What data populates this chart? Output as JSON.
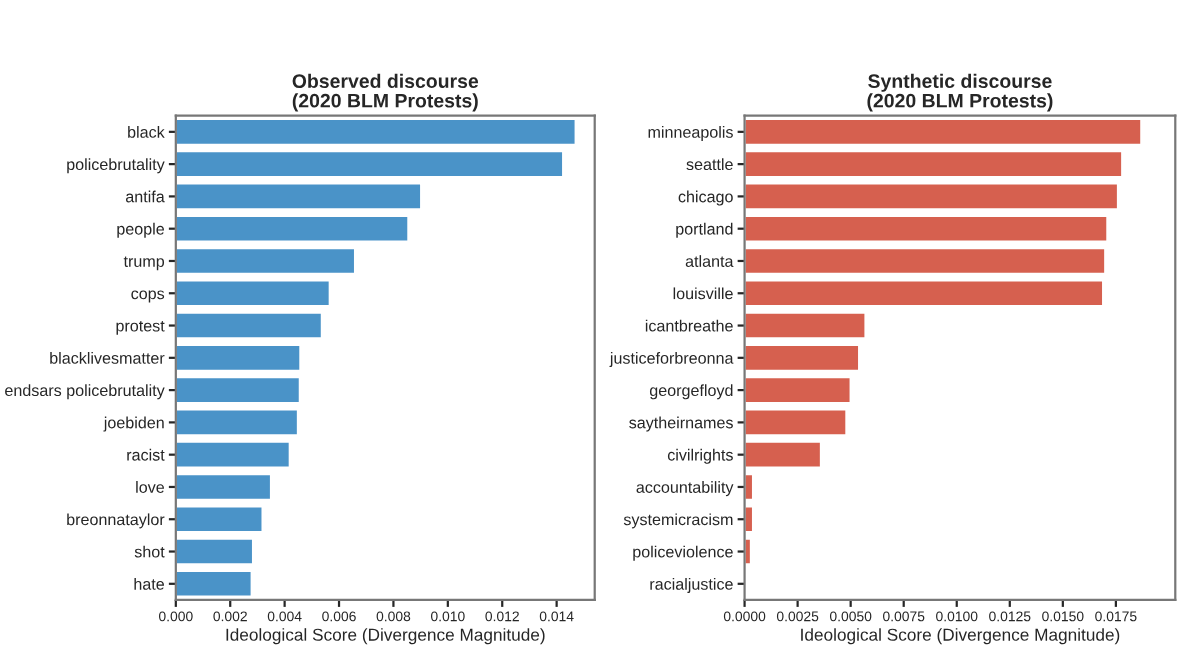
{
  "chart_data": [
    {
      "type": "bar",
      "orientation": "horizontal",
      "title": "Observed discourse\n(2020 BLM Protests)",
      "xlabel": "Ideological Score (Divergence Magnitude)",
      "categories": [
        "black",
        "policebrutality",
        "antifa",
        "people",
        "trump",
        "cops",
        "protest",
        "blacklivesmatter",
        "endsars policebrutality",
        "joebiden",
        "racist",
        "love",
        "breonnataylor",
        "shot",
        "hate"
      ],
      "series": [
        {
          "color": "#4a93c8",
          "values": [
            0.0147,
            0.01424,
            0.00902,
            0.00855,
            0.00659,
            0.00566,
            0.00537,
            0.00458,
            0.00456,
            0.00449,
            0.00419,
            0.0035,
            0.00319,
            0.00284,
            0.00279
          ]
        }
      ],
      "xlim": [
        0,
        0.0154
      ],
      "xticks": [
        {
          "value": 0,
          "label": "0.000"
        },
        {
          "value": 0.002,
          "label": "0.002"
        },
        {
          "value": 0.004,
          "label": "0.004"
        },
        {
          "value": 0.006,
          "label": "0.006"
        },
        {
          "value": 0.008,
          "label": "0.008"
        },
        {
          "value": 0.01,
          "label": "0.010"
        },
        {
          "value": 0.012,
          "label": "0.012"
        },
        {
          "value": 0.014,
          "label": "0.014"
        }
      ],
      "grid": false,
      "legend": false
    },
    {
      "type": "bar",
      "orientation": "horizontal",
      "title": "Synthetic discourse\n(2020 BLM Protests)",
      "xlabel": "Ideological Score (Divergence Magnitude)",
      "categories": [
        "minneapolis",
        "seattle",
        "chicago",
        "portland",
        "atlanta",
        "louisville",
        "icantbreathe",
        "justiceforbreonna",
        "georgefloyd",
        "saytheirnames",
        "civilrights",
        "accountability",
        "systemicracism",
        "policeviolence",
        "racialjustice"
      ],
      "series": [
        {
          "color": "#d6604f",
          "values": [
            0.0187,
            0.0178,
            0.0176,
            0.0171,
            0.017,
            0.0169,
            0.0057,
            0.0054,
            0.005,
            0.0048,
            0.0036,
            0.0004,
            0.0004,
            0.0003,
            0.0001
          ]
        }
      ],
      "xlim": [
        0,
        0.0203
      ],
      "xticks": [
        {
          "value": 0,
          "label": "0.0000"
        },
        {
          "value": 0.0025,
          "label": "0.0025"
        },
        {
          "value": 0.005,
          "label": "0.0050"
        },
        {
          "value": 0.0075,
          "label": "0.0075"
        },
        {
          "value": 0.01,
          "label": "0.0100"
        },
        {
          "value": 0.0125,
          "label": "0.0125"
        },
        {
          "value": 0.015,
          "label": "0.0150"
        },
        {
          "value": 0.0175,
          "label": "0.0175"
        }
      ],
      "grid": false,
      "legend": false
    }
  ]
}
